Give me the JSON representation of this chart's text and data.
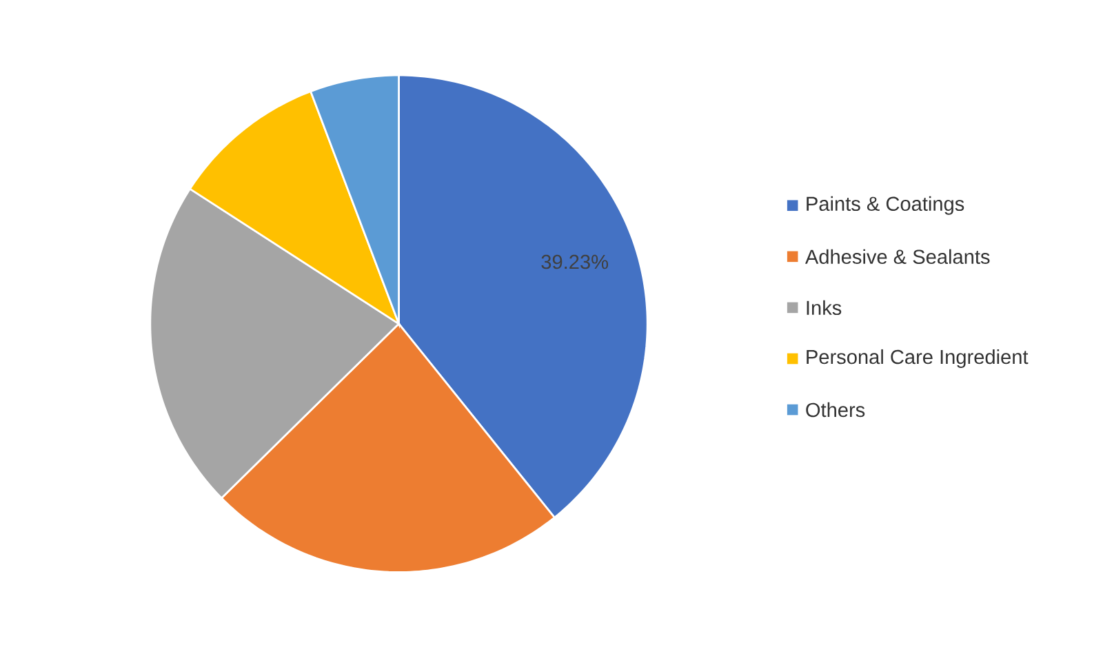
{
  "chart_data": {
    "type": "pie",
    "categories": [
      "Paints & Coatings",
      "Adhesive & Sealants",
      "Inks",
      "Personal Care Ingredient",
      "Others"
    ],
    "values": [
      39.23,
      23.4,
      21.5,
      10.1,
      5.77
    ],
    "colors": [
      "#4472c4",
      "#ed7d31",
      "#a5a5a5",
      "#ffc000",
      "#5b9bd5"
    ],
    "value_labels": [
      "39.23%",
      null,
      null,
      null,
      null
    ],
    "legend": "right"
  }
}
